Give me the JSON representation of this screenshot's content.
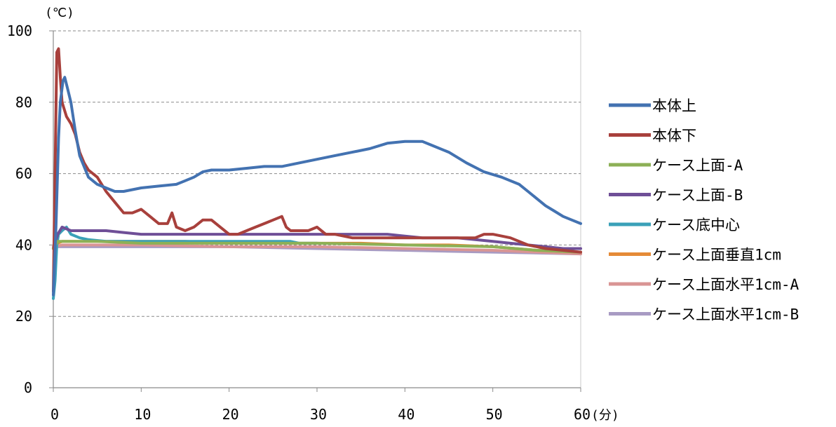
{
  "chart_data": {
    "type": "line",
    "y_unit": "(℃)",
    "x_unit": "(分)",
    "xlim": [
      0,
      60
    ],
    "ylim": [
      0,
      100
    ],
    "x_ticks": [
      0,
      10,
      20,
      30,
      40,
      50,
      60
    ],
    "y_ticks": [
      0,
      20,
      40,
      60,
      80,
      100
    ],
    "grid": "horizontal dashed",
    "legend_position": "right",
    "series": [
      {
        "name": "本体上",
        "color": "#4372b1",
        "points": [
          [
            0,
            26
          ],
          [
            0.3,
            45
          ],
          [
            0.6,
            70
          ],
          [
            0.8,
            80
          ],
          [
            1.1,
            86
          ],
          [
            1.3,
            87
          ],
          [
            1.6,
            84
          ],
          [
            2,
            80
          ],
          [
            2.5,
            72
          ],
          [
            3,
            65
          ],
          [
            4,
            59
          ],
          [
            5,
            57
          ],
          [
            6,
            56
          ],
          [
            7,
            55
          ],
          [
            8,
            55
          ],
          [
            9,
            55.5
          ],
          [
            10,
            56
          ],
          [
            12,
            56.5
          ],
          [
            14,
            57
          ],
          [
            15,
            58
          ],
          [
            16,
            59
          ],
          [
            17,
            60.5
          ],
          [
            18,
            61
          ],
          [
            20,
            61
          ],
          [
            22,
            61.5
          ],
          [
            24,
            62
          ],
          [
            26,
            62
          ],
          [
            28,
            63
          ],
          [
            30,
            64
          ],
          [
            32,
            65
          ],
          [
            34,
            66
          ],
          [
            36,
            67
          ],
          [
            38,
            68.5
          ],
          [
            40,
            69
          ],
          [
            42,
            69
          ],
          [
            43,
            68
          ],
          [
            45,
            66
          ],
          [
            47,
            63
          ],
          [
            49,
            60.5
          ],
          [
            51,
            59
          ],
          [
            53,
            57
          ],
          [
            54,
            55
          ],
          [
            55,
            53
          ],
          [
            56,
            51
          ],
          [
            57,
            49.5
          ],
          [
            58,
            48
          ],
          [
            59,
            47
          ],
          [
            60,
            46
          ]
        ]
      },
      {
        "name": "本体下",
        "color": "#a8403c",
        "points": [
          [
            0,
            27
          ],
          [
            0.2,
            60
          ],
          [
            0.4,
            94
          ],
          [
            0.6,
            95
          ],
          [
            0.8,
            87
          ],
          [
            1,
            80
          ],
          [
            1.5,
            76
          ],
          [
            2,
            74
          ],
          [
            2.5,
            71
          ],
          [
            3,
            66
          ],
          [
            3.5,
            63
          ],
          [
            4,
            61
          ],
          [
            5,
            59
          ],
          [
            6,
            55
          ],
          [
            7,
            52
          ],
          [
            8,
            49
          ],
          [
            9,
            49
          ],
          [
            10,
            50
          ],
          [
            11,
            48
          ],
          [
            12,
            46
          ],
          [
            13,
            46
          ],
          [
            13.5,
            49
          ],
          [
            14,
            45
          ],
          [
            15,
            44
          ],
          [
            16,
            45
          ],
          [
            17,
            47
          ],
          [
            18,
            47
          ],
          [
            19,
            45
          ],
          [
            20,
            43
          ],
          [
            21,
            43
          ],
          [
            22,
            44
          ],
          [
            23,
            45
          ],
          [
            24,
            46
          ],
          [
            25,
            47
          ],
          [
            26,
            48
          ],
          [
            26.5,
            45
          ],
          [
            27,
            44
          ],
          [
            28,
            44
          ],
          [
            29,
            44
          ],
          [
            30,
            45
          ],
          [
            31,
            43
          ],
          [
            32,
            43
          ],
          [
            34,
            42
          ],
          [
            36,
            42
          ],
          [
            38,
            42
          ],
          [
            40,
            42
          ],
          [
            42,
            42
          ],
          [
            44,
            42
          ],
          [
            46,
            42
          ],
          [
            48,
            42
          ],
          [
            49,
            43
          ],
          [
            50,
            43
          ],
          [
            52,
            42
          ],
          [
            54,
            40
          ],
          [
            56,
            39
          ],
          [
            58,
            38.5
          ],
          [
            60,
            38
          ]
        ]
      },
      {
        "name": "ケース上面-A",
        "color": "#8db056",
        "points": [
          [
            0,
            39
          ],
          [
            0.5,
            41
          ],
          [
            1,
            41
          ],
          [
            5,
            41
          ],
          [
            10,
            40.5
          ],
          [
            20,
            40.5
          ],
          [
            30,
            40.5
          ],
          [
            40,
            40
          ],
          [
            50,
            39.5
          ],
          [
            55,
            38.5
          ],
          [
            60,
            38
          ]
        ]
      },
      {
        "name": "ケース上面-B",
        "color": "#6f4f97",
        "points": [
          [
            0,
            39
          ],
          [
            0.5,
            43
          ],
          [
            1,
            45
          ],
          [
            2,
            44
          ],
          [
            4,
            44
          ],
          [
            6,
            44
          ],
          [
            8,
            43.5
          ],
          [
            10,
            43
          ],
          [
            12,
            43
          ],
          [
            14,
            43
          ],
          [
            16,
            43
          ],
          [
            18,
            43
          ],
          [
            20,
            43
          ],
          [
            22,
            43
          ],
          [
            24,
            43
          ],
          [
            26,
            43
          ],
          [
            28,
            43
          ],
          [
            30,
            43
          ],
          [
            32,
            43
          ],
          [
            34,
            43
          ],
          [
            36,
            43
          ],
          [
            38,
            43
          ],
          [
            40,
            42.5
          ],
          [
            42,
            42
          ],
          [
            44,
            42
          ],
          [
            46,
            42
          ],
          [
            48,
            41.5
          ],
          [
            50,
            41
          ],
          [
            52,
            40.5
          ],
          [
            54,
            40
          ],
          [
            56,
            39.5
          ],
          [
            58,
            39
          ],
          [
            60,
            39
          ]
        ]
      },
      {
        "name": "ケース底中心",
        "color": "#3aa1b8",
        "points": [
          [
            0,
            25
          ],
          [
            0.2,
            30
          ],
          [
            0.4,
            40
          ],
          [
            0.6,
            43
          ],
          [
            1,
            44
          ],
          [
            1.5,
            45
          ],
          [
            2,
            43
          ],
          [
            3,
            42
          ],
          [
            4,
            41.5
          ],
          [
            6,
            41
          ],
          [
            10,
            41
          ],
          [
            15,
            41
          ],
          [
            20,
            41
          ],
          [
            25,
            41
          ],
          [
            27,
            41
          ],
          [
            28,
            40.5
          ],
          [
            30,
            40.5
          ]
        ]
      },
      {
        "name": "ケース上面垂直1cm",
        "color": "#e58b37",
        "points": [
          [
            0,
            39
          ],
          [
            0.5,
            40.5
          ],
          [
            1,
            41
          ],
          [
            5,
            41
          ],
          [
            10,
            41
          ],
          [
            15,
            41
          ],
          [
            20,
            40.5
          ],
          [
            25,
            40.5
          ],
          [
            30,
            40.5
          ],
          [
            35,
            40.5
          ],
          [
            40,
            40
          ],
          [
            45,
            40
          ],
          [
            50,
            39.5
          ],
          [
            55,
            38.5
          ],
          [
            60,
            38
          ]
        ]
      },
      {
        "name": "ケース上面水平1cm-A",
        "color": "#d99594",
        "points": [
          [
            0,
            39.5
          ],
          [
            1,
            40
          ],
          [
            10,
            40
          ],
          [
            20,
            39.5
          ],
          [
            30,
            39.5
          ],
          [
            40,
            39
          ],
          [
            50,
            38.5
          ],
          [
            60,
            37.5
          ]
        ]
      },
      {
        "name": "ケース上面水平1cm-B",
        "color": "#a89bc3",
        "points": [
          [
            0,
            39.5
          ],
          [
            1,
            39.5
          ],
          [
            10,
            39.5
          ],
          [
            20,
            39.5
          ],
          [
            30,
            39
          ],
          [
            40,
            38.5
          ],
          [
            50,
            38
          ],
          [
            60,
            37.5
          ]
        ]
      }
    ]
  }
}
